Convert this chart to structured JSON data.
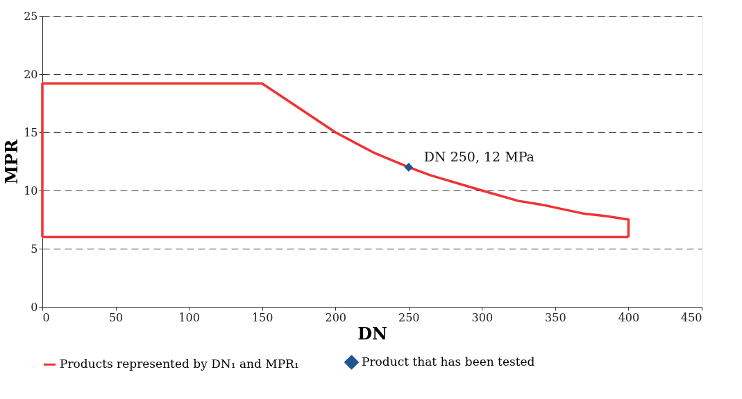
{
  "chart_data": {
    "type": "line",
    "xlabel": "DN",
    "ylabel": "MPR",
    "series": [
      {
        "name": "Products represented by DN₁ and MPR₁",
        "color": "#ee3333",
        "marker": "none",
        "x": [
          0,
          0,
          150,
          200,
          227,
          250,
          265,
          300,
          325,
          340,
          355,
          370,
          385,
          400,
          400
        ],
        "values": [
          6,
          19.2,
          19.2,
          15,
          13.2,
          12,
          11.3,
          10,
          9.1,
          8.8,
          8.4,
          8.0,
          7.8,
          7.5,
          6
        ]
      },
      {
        "color": "#ee3333",
        "marker": "none",
        "x": [
          0,
          400
        ],
        "values": [
          6,
          6
        ]
      },
      {
        "name": "Product that has been tested",
        "color": "#1f5591",
        "type": "scatter",
        "marker": "diamond",
        "x": [
          250
        ],
        "values": [
          12
        ]
      }
    ],
    "annotations": [
      {
        "text": "DN 250, 12 MPa",
        "x": 250,
        "y": 12
      }
    ],
    "xlim": [
      0,
      450
    ],
    "xticks": [
      0,
      50,
      100,
      150,
      200,
      250,
      300,
      350,
      400,
      450
    ],
    "ylim": [
      0,
      25
    ],
    "yticks": [
      0,
      5,
      10,
      15,
      20,
      25
    ],
    "grid": "y",
    "legend": "bottom"
  }
}
